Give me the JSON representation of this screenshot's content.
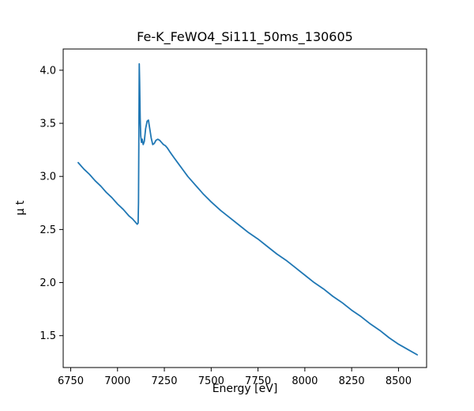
{
  "chart_data": {
    "type": "line",
    "title": "Fe-K_FeWO4_Si111_50ms_130605",
    "xlabel": "Energy [eV]",
    "ylabel": "μ t",
    "xlim": [
      6710,
      8650
    ],
    "ylim": [
      1.2,
      4.2
    ],
    "xticks": [
      6750,
      7000,
      7250,
      7500,
      7750,
      8000,
      8250,
      8500
    ],
    "yticks": [
      1.5,
      2.0,
      2.5,
      3.0,
      3.5,
      4.0
    ],
    "grid": false,
    "legend": "none",
    "line_color": "#1f77b4",
    "axis_color": "#000000",
    "background_color": "#ffffff",
    "series": [
      {
        "name": "mu_t",
        "x": [
          6790,
          6820,
          6850,
          6880,
          6910,
          6940,
          6970,
          7000,
          7030,
          7060,
          7080,
          7095,
          7105,
          7110,
          7112,
          7114,
          7116,
          7118,
          7121,
          7124,
          7128,
          7132,
          7137,
          7143,
          7150,
          7158,
          7165,
          7172,
          7180,
          7188,
          7196,
          7205,
          7215,
          7225,
          7235,
          7245,
          7255,
          7265,
          7280,
          7300,
          7325,
          7350,
          7375,
          7400,
          7430,
          7460,
          7500,
          7550,
          7600,
          7650,
          7700,
          7750,
          7800,
          7850,
          7900,
          7950,
          8000,
          8050,
          8100,
          8150,
          8200,
          8250,
          8300,
          8350,
          8400,
          8450,
          8500,
          8550,
          8600
        ],
        "y": [
          3.13,
          3.07,
          3.02,
          2.96,
          2.91,
          2.85,
          2.8,
          2.74,
          2.69,
          2.63,
          2.6,
          2.57,
          2.55,
          2.56,
          2.75,
          3.4,
          4.06,
          3.9,
          3.55,
          3.38,
          3.32,
          3.35,
          3.3,
          3.33,
          3.45,
          3.52,
          3.53,
          3.45,
          3.36,
          3.3,
          3.31,
          3.34,
          3.35,
          3.34,
          3.32,
          3.3,
          3.29,
          3.27,
          3.23,
          3.18,
          3.12,
          3.06,
          3.0,
          2.95,
          2.89,
          2.83,
          2.76,
          2.68,
          2.61,
          2.54,
          2.47,
          2.41,
          2.34,
          2.27,
          2.21,
          2.14,
          2.07,
          2.0,
          1.94,
          1.87,
          1.81,
          1.74,
          1.68,
          1.61,
          1.55,
          1.48,
          1.42,
          1.37,
          1.32
        ]
      }
    ]
  }
}
